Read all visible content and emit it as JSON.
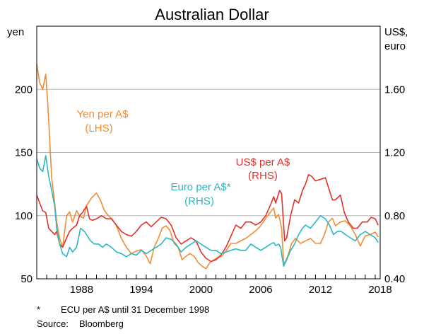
{
  "chart_data": {
    "type": "line",
    "title": "Australian Dollar",
    "left_axis": {
      "label": "yen",
      "min": 50,
      "max": 250,
      "ticks": [
        50,
        100,
        150,
        200
      ]
    },
    "right_axis": {
      "label_line1": "US$,",
      "label_line2": "euro",
      "min": 0.4,
      "max": 2.0,
      "ticks": [
        "0.40",
        "0.80",
        "1.20",
        "1.60"
      ]
    },
    "x_axis": {
      "min": 1984.0,
      "max": 2018.5,
      "tick_labels": [
        "1988",
        "1994",
        "2000",
        "2006",
        "2012",
        "2018"
      ]
    },
    "series": [
      {
        "name": "Yen per A$",
        "axis_note": "(LHS)",
        "axis": "left",
        "color": "#f28c35",
        "points": [
          [
            1984.0,
            220
          ],
          [
            1984.3,
            205
          ],
          [
            1984.6,
            200
          ],
          [
            1984.9,
            212
          ],
          [
            1985.1,
            190
          ],
          [
            1985.3,
            160
          ],
          [
            1985.5,
            130
          ],
          [
            1985.8,
            110
          ],
          [
            1986.0,
            95
          ],
          [
            1986.3,
            82
          ],
          [
            1986.6,
            75
          ],
          [
            1987.0,
            100
          ],
          [
            1987.3,
            103
          ],
          [
            1987.6,
            95
          ],
          [
            1988.0,
            104
          ],
          [
            1988.3,
            100
          ],
          [
            1988.7,
            98
          ],
          [
            1989.0,
            108
          ],
          [
            1989.5,
            114
          ],
          [
            1990.0,
            118
          ],
          [
            1990.4,
            112
          ],
          [
            1990.8,
            104
          ],
          [
            1991.2,
            100
          ],
          [
            1991.6,
            97
          ],
          [
            1992.0,
            92
          ],
          [
            1992.5,
            82
          ],
          [
            1993.0,
            75
          ],
          [
            1993.5,
            70
          ],
          [
            1994.0,
            72
          ],
          [
            1994.5,
            73
          ],
          [
            1995.0,
            68
          ],
          [
            1995.4,
            62
          ],
          [
            1995.8,
            75
          ],
          [
            1996.2,
            82
          ],
          [
            1996.6,
            90
          ],
          [
            1997.0,
            92
          ],
          [
            1997.4,
            88
          ],
          [
            1997.8,
            78
          ],
          [
            1998.2,
            75
          ],
          [
            1998.6,
            65
          ],
          [
            1999.0,
            68
          ],
          [
            1999.4,
            70
          ],
          [
            1999.8,
            68
          ],
          [
            2000.2,
            63
          ],
          [
            2000.6,
            60
          ],
          [
            2001.0,
            58
          ],
          [
            2001.4,
            63
          ],
          [
            2001.8,
            65
          ],
          [
            2002.2,
            67
          ],
          [
            2002.6,
            68
          ],
          [
            2003.0,
            72
          ],
          [
            2003.5,
            78
          ],
          [
            2004.0,
            78
          ],
          [
            2004.5,
            80
          ],
          [
            2005.0,
            82
          ],
          [
            2005.5,
            85
          ],
          [
            2006.0,
            88
          ],
          [
            2006.5,
            92
          ],
          [
            2007.0,
            98
          ],
          [
            2007.5,
            103
          ],
          [
            2007.8,
            106
          ],
          [
            2008.0,
            98
          ],
          [
            2008.3,
            101
          ],
          [
            2008.6,
            90
          ],
          [
            2008.8,
            62
          ],
          [
            2009.0,
            64
          ],
          [
            2009.3,
            70
          ],
          [
            2009.6,
            78
          ],
          [
            2010.0,
            82
          ],
          [
            2010.5,
            78
          ],
          [
            2011.0,
            80
          ],
          [
            2011.5,
            82
          ],
          [
            2012.0,
            78
          ],
          [
            2012.5,
            78
          ],
          [
            2012.9,
            85
          ],
          [
            2013.3,
            95
          ],
          [
            2013.7,
            98
          ],
          [
            2014.0,
            92
          ],
          [
            2014.5,
            95
          ],
          [
            2015.0,
            96
          ],
          [
            2015.5,
            92
          ],
          [
            2016.0,
            85
          ],
          [
            2016.5,
            76
          ],
          [
            2017.0,
            84
          ],
          [
            2017.5,
            85
          ],
          [
            2018.0,
            87
          ],
          [
            2018.3,
            83
          ]
        ]
      },
      {
        "name": "US$ per A$",
        "axis_note": "(RHS)",
        "axis": "right",
        "color": "#e0312c",
        "points": [
          [
            1984.0,
            0.93
          ],
          [
            1984.3,
            0.88
          ],
          [
            1984.6,
            0.83
          ],
          [
            1984.9,
            0.82
          ],
          [
            1985.2,
            0.72
          ],
          [
            1985.5,
            0.7
          ],
          [
            1985.8,
            0.68
          ],
          [
            1986.0,
            0.7
          ],
          [
            1986.3,
            0.62
          ],
          [
            1986.6,
            0.6
          ],
          [
            1987.0,
            0.66
          ],
          [
            1987.3,
            0.7
          ],
          [
            1987.6,
            0.72
          ],
          [
            1988.0,
            0.74
          ],
          [
            1988.3,
            0.8
          ],
          [
            1988.6,
            0.82
          ],
          [
            1989.0,
            0.86
          ],
          [
            1989.3,
            0.78
          ],
          [
            1989.6,
            0.77
          ],
          [
            1990.0,
            0.78
          ],
          [
            1990.5,
            0.8
          ],
          [
            1991.0,
            0.78
          ],
          [
            1991.5,
            0.78
          ],
          [
            1992.0,
            0.74
          ],
          [
            1992.5,
            0.7
          ],
          [
            1993.0,
            0.68
          ],
          [
            1993.5,
            0.67
          ],
          [
            1994.0,
            0.7
          ],
          [
            1994.5,
            0.74
          ],
          [
            1995.0,
            0.76
          ],
          [
            1995.5,
            0.73
          ],
          [
            1996.0,
            0.76
          ],
          [
            1996.5,
            0.79
          ],
          [
            1997.0,
            0.78
          ],
          [
            1997.5,
            0.74
          ],
          [
            1998.0,
            0.66
          ],
          [
            1998.5,
            0.62
          ],
          [
            1999.0,
            0.64
          ],
          [
            1999.5,
            0.66
          ],
          [
            2000.0,
            0.64
          ],
          [
            2000.5,
            0.57
          ],
          [
            2001.0,
            0.53
          ],
          [
            2001.5,
            0.51
          ],
          [
            2002.0,
            0.52
          ],
          [
            2002.5,
            0.55
          ],
          [
            2003.0,
            0.6
          ],
          [
            2003.5,
            0.67
          ],
          [
            2004.0,
            0.74
          ],
          [
            2004.5,
            0.72
          ],
          [
            2005.0,
            0.76
          ],
          [
            2005.5,
            0.76
          ],
          [
            2006.0,
            0.74
          ],
          [
            2006.5,
            0.76
          ],
          [
            2007.0,
            0.8
          ],
          [
            2007.5,
            0.87
          ],
          [
            2007.8,
            0.92
          ],
          [
            2008.0,
            0.88
          ],
          [
            2008.4,
            0.96
          ],
          [
            2008.6,
            0.94
          ],
          [
            2008.9,
            0.64
          ],
          [
            2009.1,
            0.66
          ],
          [
            2009.5,
            0.8
          ],
          [
            2009.9,
            0.9
          ],
          [
            2010.3,
            0.88
          ],
          [
            2010.7,
            0.96
          ],
          [
            2011.0,
            1.0
          ],
          [
            2011.3,
            1.06
          ],
          [
            2011.6,
            1.05
          ],
          [
            2012.0,
            1.02
          ],
          [
            2012.5,
            1.03
          ],
          [
            2013.0,
            1.04
          ],
          [
            2013.4,
            0.96
          ],
          [
            2013.7,
            0.9
          ],
          [
            2014.0,
            0.9
          ],
          [
            2014.5,
            0.93
          ],
          [
            2014.9,
            0.82
          ],
          [
            2015.3,
            0.76
          ],
          [
            2015.8,
            0.72
          ],
          [
            2016.2,
            0.72
          ],
          [
            2016.7,
            0.76
          ],
          [
            2017.2,
            0.76
          ],
          [
            2017.6,
            0.79
          ],
          [
            2018.0,
            0.78
          ],
          [
            2018.3,
            0.74
          ]
        ]
      },
      {
        "name": "Euro per A$*",
        "axis_note": "(RHS)",
        "axis": "right",
        "color": "#2ab8c2",
        "points": [
          [
            1984.0,
            1.16
          ],
          [
            1984.3,
            1.1
          ],
          [
            1984.6,
            1.08
          ],
          [
            1984.9,
            1.18
          ],
          [
            1985.2,
            1.05
          ],
          [
            1985.5,
            0.96
          ],
          [
            1985.8,
            0.86
          ],
          [
            1986.0,
            0.72
          ],
          [
            1986.3,
            0.62
          ],
          [
            1986.6,
            0.56
          ],
          [
            1987.0,
            0.54
          ],
          [
            1987.3,
            0.6
          ],
          [
            1987.6,
            0.57
          ],
          [
            1988.0,
            0.6
          ],
          [
            1988.4,
            0.72
          ],
          [
            1988.8,
            0.7
          ],
          [
            1989.0,
            0.68
          ],
          [
            1989.4,
            0.64
          ],
          [
            1989.8,
            0.62
          ],
          [
            1990.2,
            0.62
          ],
          [
            1990.6,
            0.6
          ],
          [
            1991.0,
            0.62
          ],
          [
            1991.5,
            0.6
          ],
          [
            1992.0,
            0.57
          ],
          [
            1992.5,
            0.56
          ],
          [
            1993.0,
            0.54
          ],
          [
            1993.5,
            0.56
          ],
          [
            1994.0,
            0.55
          ],
          [
            1994.5,
            0.58
          ],
          [
            1995.0,
            0.56
          ],
          [
            1995.5,
            0.58
          ],
          [
            1996.0,
            0.6
          ],
          [
            1996.5,
            0.62
          ],
          [
            1997.0,
            0.66
          ],
          [
            1997.5,
            0.65
          ],
          [
            1998.0,
            0.62
          ],
          [
            1998.5,
            0.57
          ],
          [
            1999.0,
            0.6
          ],
          [
            1999.5,
            0.62
          ],
          [
            2000.0,
            0.64
          ],
          [
            2000.5,
            0.62
          ],
          [
            2001.0,
            0.6
          ],
          [
            2001.5,
            0.58
          ],
          [
            2002.0,
            0.58
          ],
          [
            2002.5,
            0.56
          ],
          [
            2003.0,
            0.57
          ],
          [
            2003.5,
            0.58
          ],
          [
            2004.0,
            0.59
          ],
          [
            2004.5,
            0.58
          ],
          [
            2005.0,
            0.58
          ],
          [
            2005.5,
            0.62
          ],
          [
            2006.0,
            0.6
          ],
          [
            2006.5,
            0.58
          ],
          [
            2007.0,
            0.6
          ],
          [
            2007.5,
            0.62
          ],
          [
            2007.8,
            0.63
          ],
          [
            2008.0,
            0.61
          ],
          [
            2008.3,
            0.62
          ],
          [
            2008.5,
            0.6
          ],
          [
            2008.8,
            0.48
          ],
          [
            2009.1,
            0.52
          ],
          [
            2009.5,
            0.58
          ],
          [
            2009.9,
            0.62
          ],
          [
            2010.3,
            0.68
          ],
          [
            2010.7,
            0.72
          ],
          [
            2011.0,
            0.74
          ],
          [
            2011.5,
            0.72
          ],
          [
            2012.0,
            0.76
          ],
          [
            2012.5,
            0.8
          ],
          [
            2013.0,
            0.78
          ],
          [
            2013.4,
            0.74
          ],
          [
            2013.8,
            0.68
          ],
          [
            2014.2,
            0.7
          ],
          [
            2014.6,
            0.7
          ],
          [
            2015.0,
            0.68
          ],
          [
            2015.5,
            0.66
          ],
          [
            2016.0,
            0.64
          ],
          [
            2016.5,
            0.68
          ],
          [
            2017.0,
            0.7
          ],
          [
            2017.5,
            0.68
          ],
          [
            2018.0,
            0.66
          ],
          [
            2018.3,
            0.63
          ]
        ]
      }
    ],
    "annotations": {
      "yen_label": "Yen per A$",
      "yen_sub": "(LHS)",
      "usd_label": "US$ per A$",
      "usd_sub": "(RHS)",
      "euro_label": "Euro per A$*",
      "euro_sub": "(RHS)"
    }
  },
  "footnotes": {
    "note_mark": "*",
    "note_text": "ECU per A$ until 31 December 1998",
    "source_label": "Source:",
    "source_text": "Bloomberg"
  }
}
